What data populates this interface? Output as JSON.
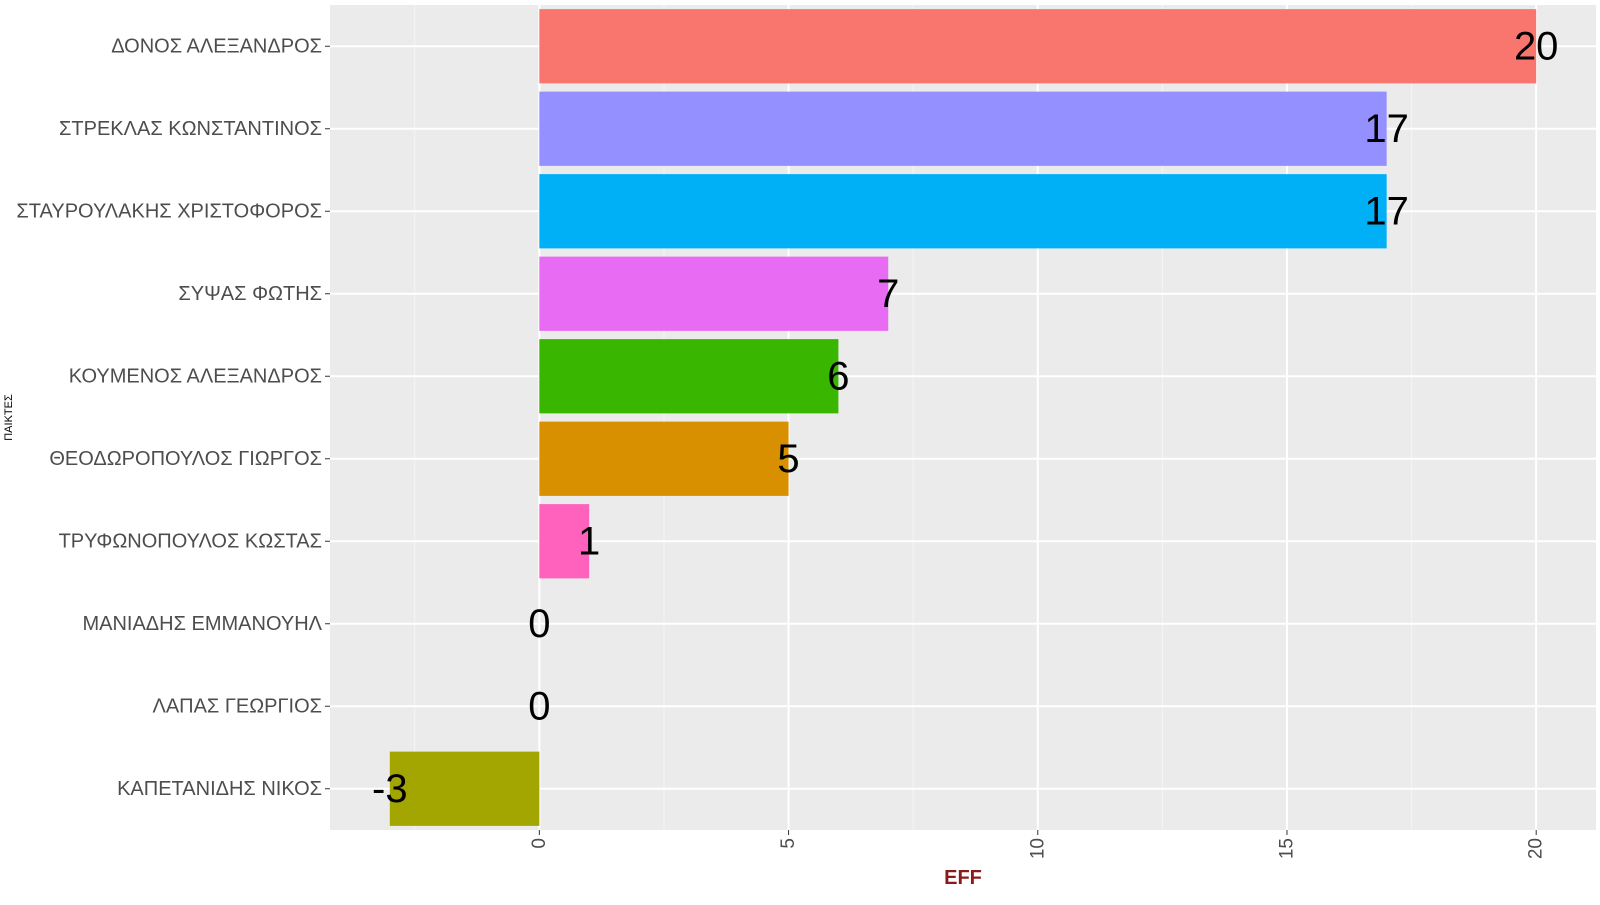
{
  "chart_data": {
    "type": "bar",
    "orientation": "horizontal",
    "xlabel": "EFF",
    "ylabel": "ΠΑΙΚΤΕΣ",
    "xlim": [
      -4.2,
      21.2
    ],
    "x_ticks": [
      0,
      5,
      10,
      15,
      20
    ],
    "grid": true,
    "legend": "none",
    "colors": {
      "panel_background": "#ebebeb",
      "grid_major": "#ffffff",
      "grid_minor": "#f5f5f5",
      "xlabel": "#8b1a1a"
    },
    "categories": [
      "ΔΟΝΟΣ ΑΛΕΞΑΝΔΡΟΣ",
      "ΣΤΡΕΚΛΑΣ ΚΩΝΣΤΑΝΤΙΝΟΣ",
      "ΣΤΑΥΡΟΥΛΑΚΗΣ ΧΡΙΣΤΟΦΟΡΟΣ",
      "ΣΥΨΑΣ ΦΩΤΗΣ",
      "ΚΟΥΜΕΝΟΣ ΑΛΕΞΑΝΔΡΟΣ",
      "ΘΕΟΔΩΡΟΠΟΥΛΟΣ ΓΙΩΡΓΟΣ",
      "ΤΡΥΦΩΝΟΠΟΥΛΟΣ ΚΩΣΤΑΣ",
      "ΜΑΝΙΑΔΗΣ ΕΜΜΑΝΟΥΗΛ",
      "ΛΑΠΑΣ ΓΕΩΡΓΙΟΣ",
      "ΚΑΠΕΤΑΝΙΔΗΣ ΝΙΚΟΣ"
    ],
    "values": [
      20,
      17,
      17,
      7,
      6,
      5,
      1,
      0,
      0,
      -3
    ],
    "bar_colors": [
      "#F8766D",
      "#9590FF",
      "#00B0F6",
      "#E76BF3",
      "#39B600",
      "#D89000",
      "#FF62BC",
      "#00BF7D",
      "#00BFC4",
      "#A3A500"
    ]
  }
}
